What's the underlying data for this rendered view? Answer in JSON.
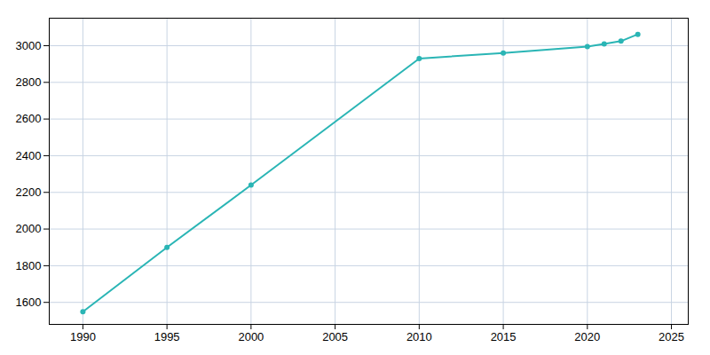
{
  "chart_data": {
    "type": "line",
    "x": [
      1990,
      1995,
      2000,
      2010,
      2015,
      2020,
      2021,
      2022,
      2023
    ],
    "values": [
      1549,
      1900,
      2240,
      2930,
      2960,
      2995,
      3010,
      3025,
      3062
    ],
    "color": "#2ab5b5",
    "marker": "circle",
    "xlim": [
      1988,
      2026
    ],
    "ylim": [
      1480,
      3150
    ],
    "xticks": [
      1990,
      1995,
      2000,
      2005,
      2010,
      2015,
      2020,
      2025
    ],
    "yticks": [
      1600,
      1800,
      2000,
      2200,
      2400,
      2600,
      2800,
      3000
    ],
    "grid": true
  }
}
